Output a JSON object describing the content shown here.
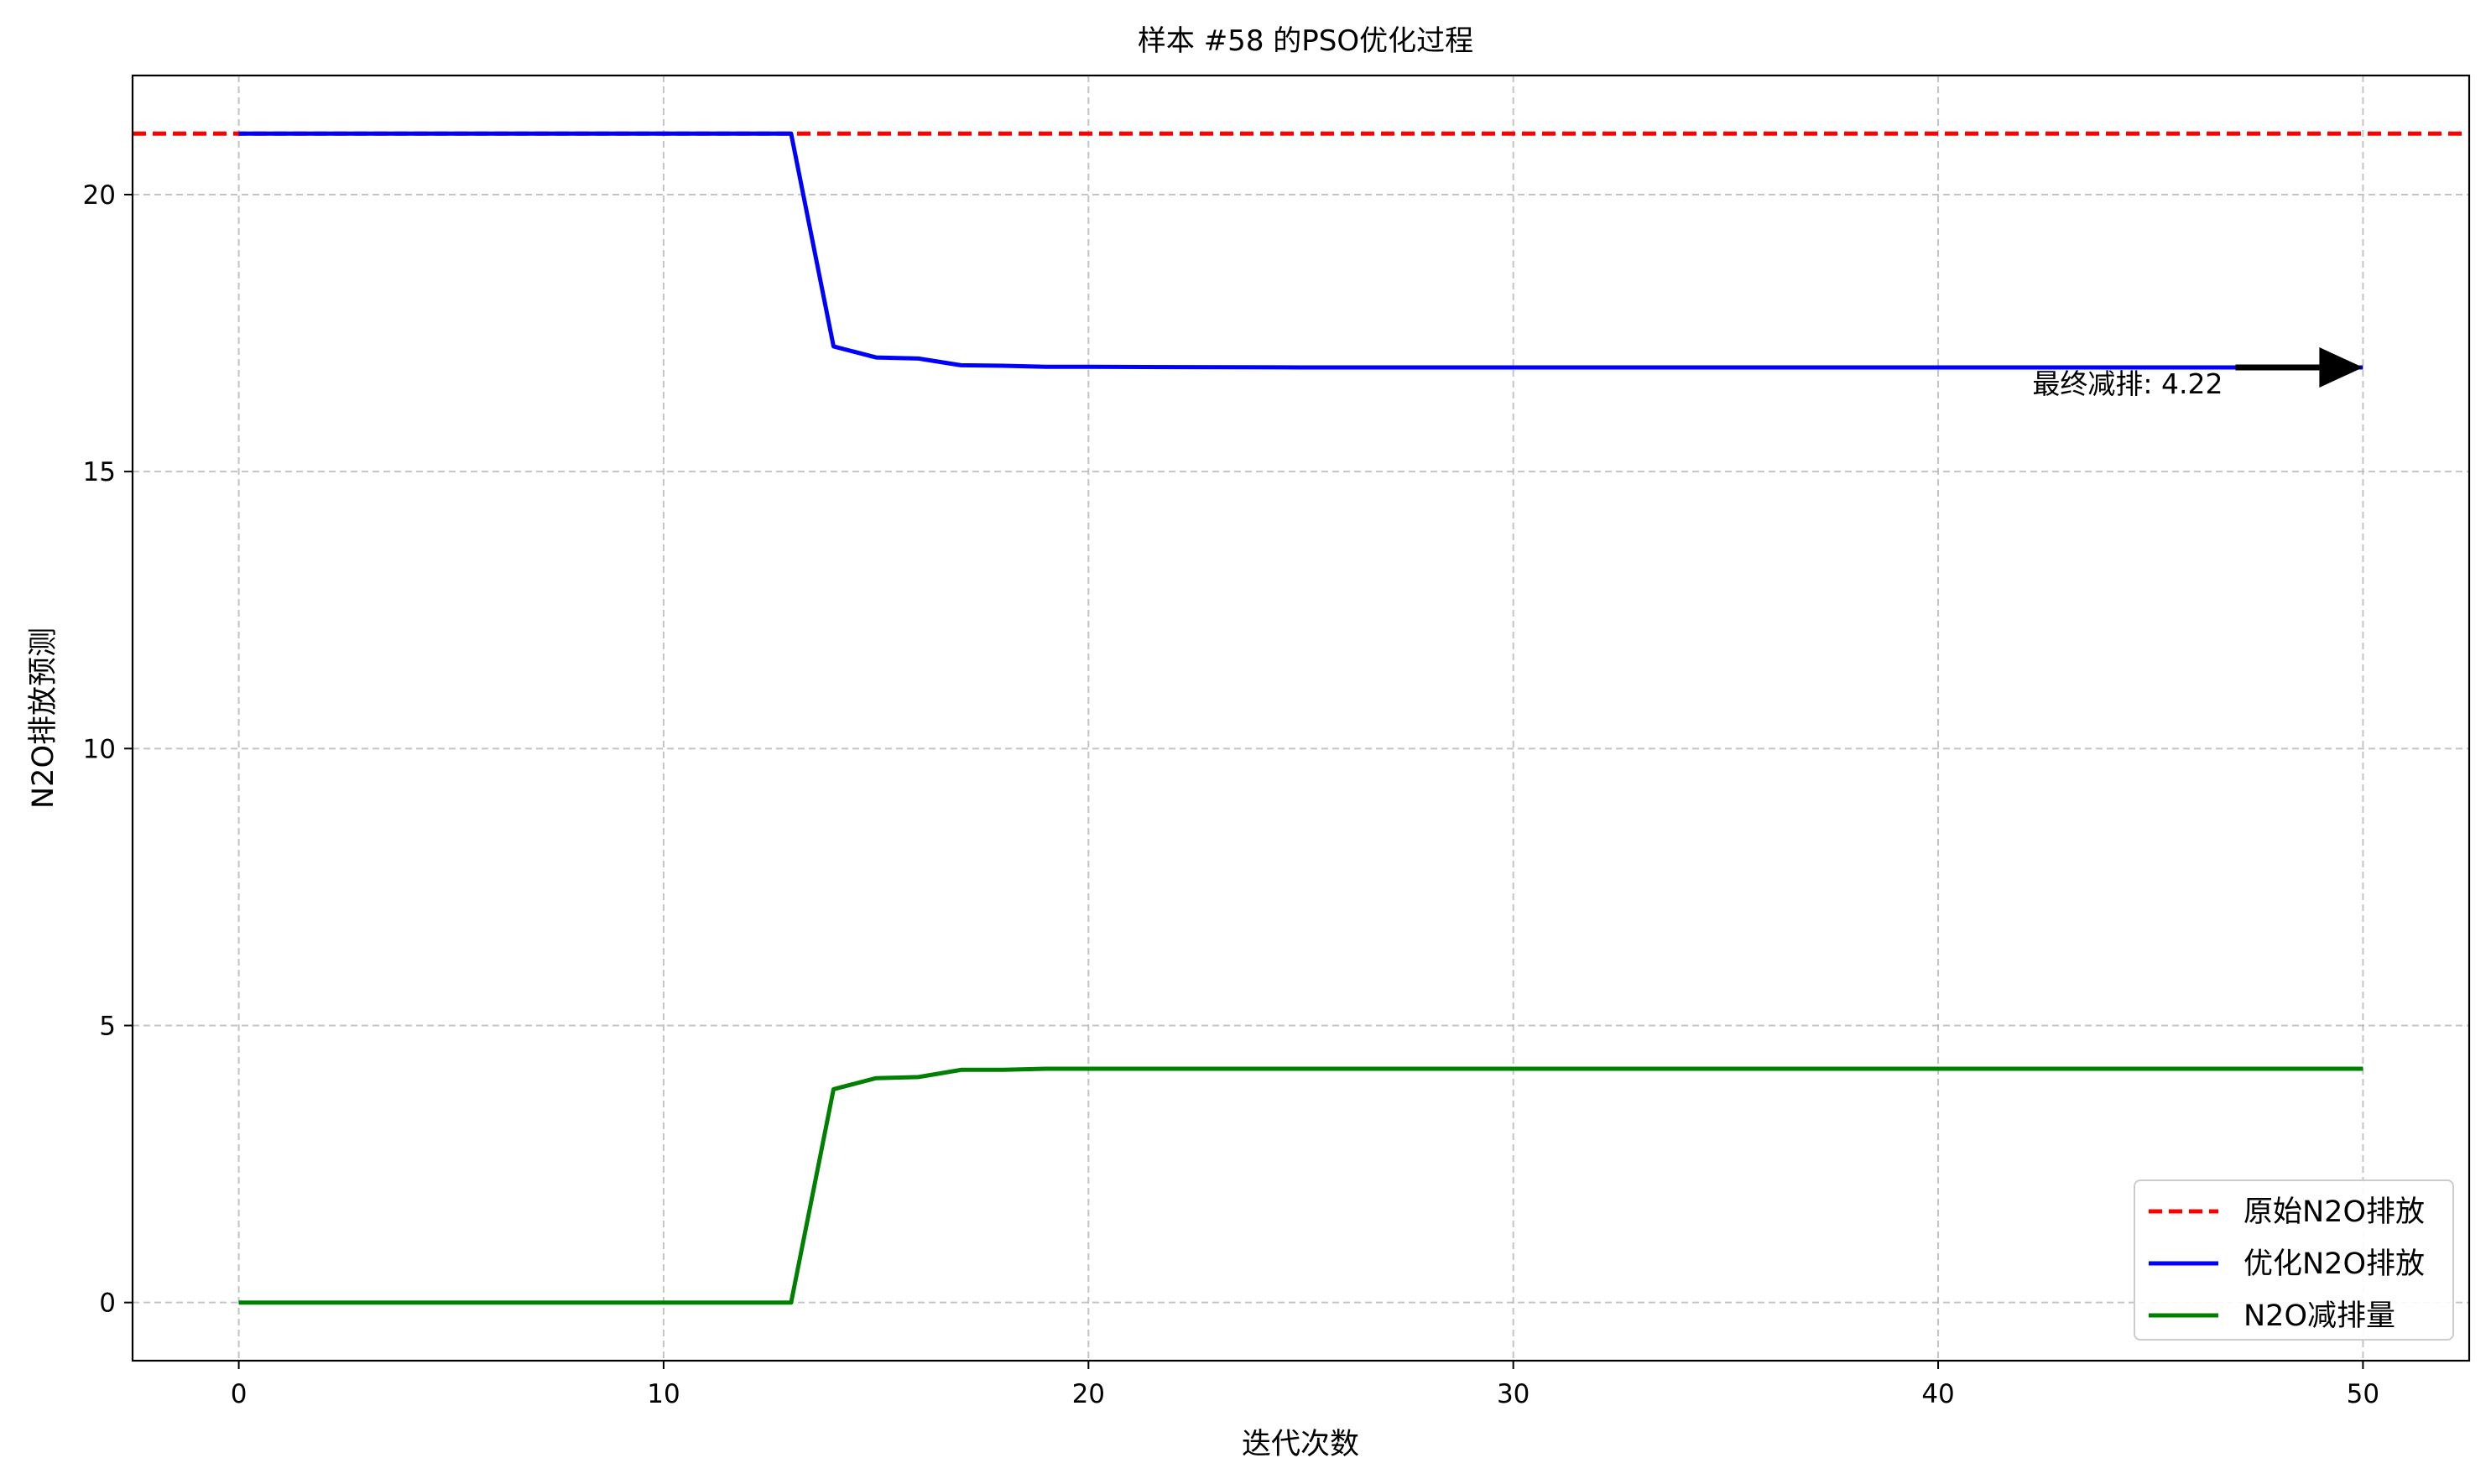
{
  "chart_data": {
    "type": "line",
    "title": "样本 #58 的PSO优化过程",
    "xlabel": "迭代次数",
    "ylabel": "N2O排放预测",
    "xlim": [
      -2.5,
      52.5
    ],
    "ylim": [
      -1.05,
      22.15
    ],
    "xticks": [
      0,
      10,
      20,
      30,
      40,
      50
    ],
    "yticks": [
      0,
      5,
      10,
      15,
      20
    ],
    "grid": true,
    "legend_position": "lower-right",
    "series": [
      {
        "name": "原始N2O排放",
        "style": "dashed",
        "color": "#ff0000",
        "x": [
          -2.5,
          52.5
        ],
        "y": [
          21.1,
          21.1
        ]
      },
      {
        "name": "优化N2O排放",
        "style": "solid",
        "color": "#0000ff",
        "x": [
          0,
          13,
          14,
          15,
          16,
          17,
          18,
          19,
          20,
          25,
          30,
          35,
          40,
          45,
          50
        ],
        "y": [
          21.1,
          21.1,
          17.26,
          17.06,
          17.04,
          16.92,
          16.91,
          16.89,
          16.89,
          16.88,
          16.88,
          16.88,
          16.88,
          16.88,
          16.88
        ]
      },
      {
        "name": "N2O减排量",
        "style": "solid",
        "color": "#008000",
        "x": [
          0,
          13,
          14,
          15,
          16,
          17,
          18,
          19,
          20,
          25,
          30,
          35,
          40,
          45,
          50
        ],
        "y": [
          0,
          0,
          3.85,
          4.05,
          4.07,
          4.2,
          4.2,
          4.22,
          4.22,
          4.22,
          4.22,
          4.22,
          4.22,
          4.22,
          4.22
        ]
      }
    ],
    "annotation": {
      "text": "最终减排: 4.22",
      "arrow_to": [
        50,
        16.88
      ],
      "text_at": [
        47,
        16.88
      ]
    }
  }
}
